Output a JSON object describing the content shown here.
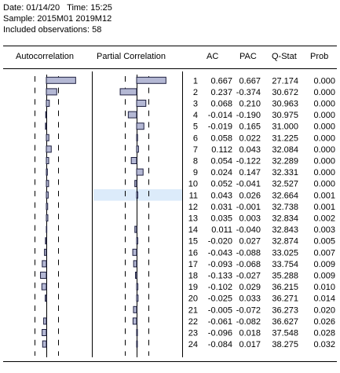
{
  "header": {
    "date_line": "Date: 01/14/20   Time: 15:25",
    "sample_line": "Sample: 2015M01 2019M12",
    "obs_line": "Included observations: 58"
  },
  "columns": {
    "autocorrelation": "Autocorrelation",
    "partial_correlation": "Partial Correlation",
    "ac": "AC",
    "pac": "PAC",
    "qstat": "Q-Stat",
    "prob": "Prob"
  },
  "colors": {
    "bar_fill": "#b4b8d4",
    "bar_stroke": "#1e2040",
    "selection": "#dcebfa"
  },
  "selected_lag": 11,
  "rows": [
    {
      "lag": "1",
      "ac": "0.667",
      "pac": "0.667",
      "q": "27.174",
      "p": "0.000"
    },
    {
      "lag": "2",
      "ac": "0.237",
      "pac": "-0.374",
      "q": "30.672",
      "p": "0.000"
    },
    {
      "lag": "3",
      "ac": "0.068",
      "pac": "0.210",
      "q": "30.963",
      "p": "0.000"
    },
    {
      "lag": "4",
      "ac": "-0.014",
      "pac": "-0.190",
      "q": "30.975",
      "p": "0.000"
    },
    {
      "lag": "5",
      "ac": "-0.019",
      "pac": "0.165",
      "q": "31.000",
      "p": "0.000"
    },
    {
      "lag": "6",
      "ac": "0.058",
      "pac": "0.022",
      "q": "31.225",
      "p": "0.000"
    },
    {
      "lag": "7",
      "ac": "0.112",
      "pac": "0.043",
      "q": "32.084",
      "p": "0.000"
    },
    {
      "lag": "8",
      "ac": "0.054",
      "pac": "-0.122",
      "q": "32.289",
      "p": "0.000"
    },
    {
      "lag": "9",
      "ac": "0.024",
      "pac": "0.147",
      "q": "32.331",
      "p": "0.000"
    },
    {
      "lag": "10",
      "ac": "0.052",
      "pac": "-0.041",
      "q": "32.527",
      "p": "0.000"
    },
    {
      "lag": "11",
      "ac": "0.043",
      "pac": "0.026",
      "q": "32.664",
      "p": "0.001"
    },
    {
      "lag": "12",
      "ac": "0.031",
      "pac": "-0.001",
      "q": "32.738",
      "p": "0.001"
    },
    {
      "lag": "13",
      "ac": "0.035",
      "pac": "0.003",
      "q": "32.834",
      "p": "0.002"
    },
    {
      "lag": "14",
      "ac": "0.011",
      "pac": "-0.040",
      "q": "32.843",
      "p": "0.003"
    },
    {
      "lag": "15",
      "ac": "-0.020",
      "pac": "0.027",
      "q": "32.874",
      "p": "0.005"
    },
    {
      "lag": "16",
      "ac": "-0.043",
      "pac": "-0.088",
      "q": "33.025",
      "p": "0.007"
    },
    {
      "lag": "17",
      "ac": "-0.093",
      "pac": "-0.068",
      "q": "33.754",
      "p": "0.009"
    },
    {
      "lag": "18",
      "ac": "-0.133",
      "pac": "-0.027",
      "q": "35.288",
      "p": "0.009"
    },
    {
      "lag": "19",
      "ac": "-0.102",
      "pac": "0.029",
      "q": "36.215",
      "p": "0.010"
    },
    {
      "lag": "20",
      "ac": "-0.025",
      "pac": "0.033",
      "q": "36.271",
      "p": "0.014"
    },
    {
      "lag": "21",
      "ac": "-0.005",
      "pac": "-0.072",
      "q": "36.273",
      "p": "0.020"
    },
    {
      "lag": "22",
      "ac": "-0.061",
      "pac": "-0.082",
      "q": "36.627",
      "p": "0.026"
    },
    {
      "lag": "23",
      "ac": "-0.096",
      "pac": "0.018",
      "q": "37.548",
      "p": "0.028"
    },
    {
      "lag": "24",
      "ac": "-0.084",
      "pac": "0.017",
      "q": "38.275",
      "p": "0.032"
    }
  ]
}
